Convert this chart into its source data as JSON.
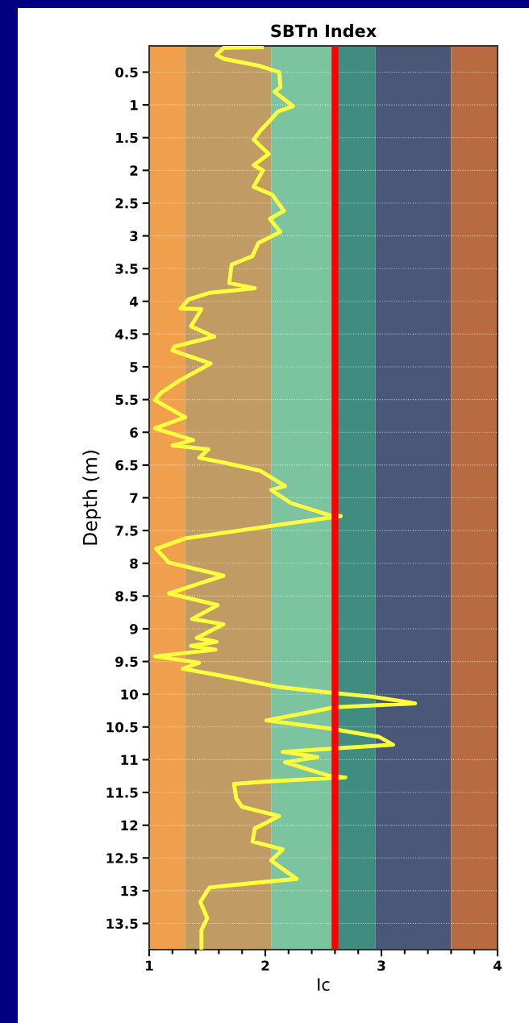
{
  "chart_data": {
    "type": "line",
    "title": "SBTn Index",
    "xlabel": "Ic",
    "ylabel": "Depth (m)",
    "xlim": [
      1,
      4
    ],
    "xticks": [
      1,
      2,
      3,
      4
    ],
    "ylim": [
      13.9,
      0.1
    ],
    "yticks": [
      0.5,
      1,
      1.5,
      2,
      2.5,
      3,
      3.5,
      4,
      4.5,
      5,
      5.5,
      6,
      6.5,
      7,
      7.5,
      8,
      8.5,
      9,
      9.5,
      10,
      10.5,
      11,
      11.5,
      12,
      12.5,
      13,
      13.5
    ],
    "grid": "y",
    "line_style": "solid",
    "bands": [
      {
        "axis": "x",
        "from": 1,
        "to": 1.31,
        "color": "#f0a04c"
      },
      {
        "axis": "x",
        "from": 1.31,
        "to": 2.05,
        "color": "#c09c64"
      },
      {
        "axis": "x",
        "from": 2.05,
        "to": 2.6,
        "color": "#7cc4a0"
      },
      {
        "axis": "x",
        "from": 2.6,
        "to": 2.95,
        "color": "#418c80"
      },
      {
        "axis": "x",
        "from": 2.95,
        "to": 3.6,
        "color": "#4a5878"
      },
      {
        "axis": "x",
        "from": 3.6,
        "to": 4,
        "color": "#b86a40"
      }
    ],
    "ref_lines": [
      {
        "axis": "x",
        "value": 2.6,
        "color": "#ff0000",
        "line_style": "solid"
      }
    ],
    "series": [
      {
        "color": "#ffff40",
        "x": [
          1.97,
          1.64,
          1.58,
          1.65,
          1.94,
          2.12,
          2.13,
          2.08,
          2.24,
          2.11,
          2.05,
          1.96,
          1.9,
          2.03,
          1.9,
          1.98,
          1.9,
          2.06,
          2.16,
          2.04,
          2.13,
          1.94,
          1.89,
          1.71,
          1.69,
          1.91,
          1.52,
          1.34,
          1.27,
          1.45,
          1.36,
          1.56,
          1.22,
          1.2,
          1.53,
          1.27,
          1.1,
          1.05,
          1.31,
          1.05,
          1.38,
          1.2,
          1.51,
          1.43,
          1.66,
          1.96,
          2.17,
          2.05,
          2.22,
          2.56,
          2.65,
          2.05,
          1.31,
          1.06,
          1.17,
          1.64,
          1.17,
          1.59,
          1.37,
          1.64,
          1.41,
          1.58,
          1.36,
          1.57,
          1.05,
          1.43,
          1.29,
          1.66,
          2.12,
          2.59,
          2.93,
          3.29,
          2.59,
          2.42,
          2.01,
          2.54,
          2.98,
          3.1,
          2.15,
          2.45,
          2.17,
          2.56,
          2.69,
          2.03,
          1.73,
          1.75,
          1.8,
          2.12,
          1.91,
          1.89,
          2.15,
          2.05,
          2.27,
          1.85,
          1.52,
          1.44,
          1.5,
          1.45,
          1.45
        ],
        "values": [
          0.12,
          0.13,
          0.24,
          0.3,
          0.4,
          0.5,
          0.73,
          0.8,
          1.02,
          1.1,
          1.22,
          1.39,
          1.53,
          1.75,
          1.92,
          2.0,
          2.25,
          2.37,
          2.62,
          2.74,
          2.94,
          3.11,
          3.31,
          3.44,
          3.72,
          3.8,
          3.87,
          3.97,
          4.11,
          4.12,
          4.38,
          4.54,
          4.69,
          4.75,
          4.95,
          5.2,
          5.4,
          5.51,
          5.77,
          5.94,
          6.12,
          6.2,
          6.26,
          6.39,
          6.47,
          6.59,
          6.82,
          6.88,
          7.08,
          7.27,
          7.28,
          7.43,
          7.62,
          7.78,
          7.99,
          8.19,
          8.46,
          8.64,
          8.85,
          8.93,
          9.14,
          9.2,
          9.26,
          9.32,
          9.42,
          9.52,
          9.61,
          9.73,
          9.89,
          9.98,
          10.04,
          10.14,
          10.2,
          10.26,
          10.4,
          10.52,
          10.65,
          10.77,
          10.88,
          10.96,
          11.04,
          11.25,
          11.27,
          11.33,
          11.37,
          11.59,
          11.72,
          11.86,
          12.05,
          12.25,
          12.37,
          12.54,
          12.82,
          12.89,
          12.95,
          13.17,
          13.42,
          13.6,
          13.89
        ]
      }
    ]
  }
}
